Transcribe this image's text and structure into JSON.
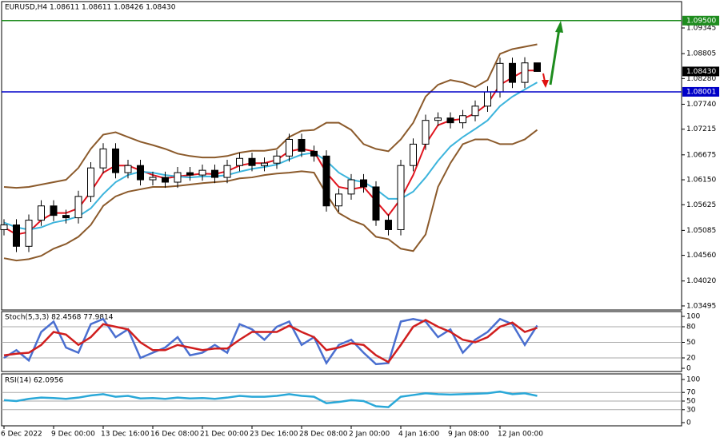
{
  "chart_data": [
    {
      "type": "candlestick",
      "title": "EURUSD,H4 1.08611 1.08611 1.08426 1.08430",
      "categories": [
        "6 Dec 2022",
        null,
        null,
        null,
        "9 Dec 00:00",
        null,
        null,
        null,
        "13 Dec 16:00",
        null,
        null,
        null,
        "16 Dec 08:00",
        null,
        null,
        null,
        "21 Dec 00:00",
        null,
        null,
        null,
        "23 Dec 16:00",
        null,
        null,
        null,
        "28 Dec 08:00",
        null,
        null,
        null,
        "2 Jan 00:00",
        null,
        null,
        null,
        "4 Jan 16:00",
        null,
        null,
        null,
        "9 Jan 08:00",
        null,
        null,
        null,
        "12 Jan 00:00",
        null,
        null,
        null
      ],
      "open": [
        1.051,
        1.052,
        1.0475,
        1.053,
        1.056,
        1.054,
        1.0535,
        1.058,
        1.064,
        1.068,
        1.063,
        1.0645,
        1.0615,
        1.062,
        1.061,
        1.063,
        1.0625,
        1.0635,
        1.062,
        1.0645,
        1.066,
        1.0645,
        1.065,
        1.0665,
        1.07,
        1.0675,
        1.0665,
        1.056,
        1.0585,
        1.0615,
        1.06,
        1.053,
        1.051,
        1.0645,
        1.069,
        1.074,
        1.0745,
        1.0735,
        1.075,
        1.077,
        1.08,
        1.086,
        1.082,
        1.08611
      ],
      "high": [
        1.0532,
        1.0532,
        1.0542,
        1.0572,
        1.0572,
        1.0552,
        1.0592,
        1.0652,
        1.0692,
        1.0692,
        1.0657,
        1.0657,
        1.0632,
        1.0632,
        1.0642,
        1.0642,
        1.0647,
        1.0647,
        1.0657,
        1.0672,
        1.0672,
        1.0662,
        1.0677,
        1.0712,
        1.0712,
        1.0687,
        1.0677,
        1.0597,
        1.0627,
        1.0627,
        1.0612,
        1.0542,
        1.0657,
        1.0702,
        1.0752,
        1.0757,
        1.0757,
        1.0762,
        1.0782,
        1.0812,
        1.0872,
        1.0872,
        1.0873,
        1.08611
      ],
      "low": [
        1.0498,
        1.0463,
        1.0463,
        1.0518,
        1.0528,
        1.0523,
        1.0523,
        1.0568,
        1.0628,
        1.0618,
        1.0618,
        1.0603,
        1.0603,
        1.0598,
        1.0598,
        1.0613,
        1.0613,
        1.0608,
        1.0608,
        1.0633,
        1.0633,
        1.0633,
        1.0638,
        1.0653,
        1.0663,
        1.0653,
        1.0548,
        1.0548,
        1.0573,
        1.0588,
        1.0518,
        1.0498,
        1.0498,
        1.0633,
        1.0678,
        1.0728,
        1.0723,
        1.0723,
        1.0738,
        1.0758,
        1.0788,
        1.0808,
        1.0808,
        1.08426
      ],
      "close": [
        1.052,
        1.0475,
        1.053,
        1.056,
        1.054,
        1.0535,
        1.058,
        1.064,
        1.068,
        1.063,
        1.0645,
        1.0615,
        1.062,
        1.061,
        1.063,
        1.0625,
        1.0635,
        1.062,
        1.0645,
        1.066,
        1.0645,
        1.065,
        1.0665,
        1.07,
        1.0675,
        1.0665,
        1.056,
        1.0585,
        1.0615,
        1.06,
        1.053,
        1.051,
        1.0645,
        1.069,
        1.074,
        1.0745,
        1.0735,
        1.075,
        1.077,
        1.08,
        1.086,
        1.082,
        1.0861,
        1.0843
      ],
      "series": [
        {
          "color": "#8b5a2b",
          "values": [
            1.06,
            1.0598,
            1.06,
            1.0605,
            1.061,
            1.0615,
            1.064,
            1.068,
            1.071,
            1.0715,
            1.0705,
            1.0695,
            1.0688,
            1.068,
            1.067,
            1.0665,
            1.0662,
            1.0662,
            1.0665,
            1.0672,
            1.0676,
            1.0676,
            1.068,
            1.0705,
            1.0718,
            1.072,
            1.0735,
            1.0735,
            1.072,
            1.069,
            1.068,
            1.0675,
            1.07,
            1.0735,
            1.079,
            1.0815,
            1.0825,
            1.082,
            1.081,
            1.0825,
            1.088,
            1.089,
            1.0895,
            1.09
          ]
        },
        {
          "color": "#8b5a2b",
          "values": [
            1.045,
            1.0445,
            1.0448,
            1.0455,
            1.047,
            1.048,
            1.0495,
            1.052,
            1.056,
            1.058,
            1.059,
            1.0595,
            1.06,
            1.06,
            1.0602,
            1.0605,
            1.0608,
            1.061,
            1.0612,
            1.0618,
            1.062,
            1.0625,
            1.0628,
            1.063,
            1.0633,
            1.063,
            1.0585,
            1.0545,
            1.053,
            1.052,
            1.0495,
            1.049,
            1.047,
            1.0465,
            1.05,
            1.06,
            1.065,
            1.069,
            1.07,
            1.07,
            1.069,
            1.069,
            1.07,
            1.072
          ]
        },
        {
          "color": "#e0141e",
          "values": [
            1.0515,
            1.05,
            1.0505,
            1.053,
            1.0545,
            1.0545,
            1.0555,
            1.059,
            1.063,
            1.0645,
            1.0645,
            1.0635,
            1.0625,
            1.0618,
            1.0622,
            1.0625,
            1.0628,
            1.0627,
            1.0633,
            1.0645,
            1.065,
            1.065,
            1.0657,
            1.0675,
            1.068,
            1.0675,
            1.063,
            1.06,
            1.0595,
            1.06,
            1.057,
            1.054,
            1.0575,
            1.0625,
            1.069,
            1.073,
            1.074,
            1.0743,
            1.0755,
            1.0775,
            1.0815,
            1.083,
            1.0845,
            1.0845
          ]
        },
        {
          "color": "#3cb4dc",
          "values": [
            1.0525,
            1.0515,
            1.051,
            1.0515,
            1.0525,
            1.053,
            1.0538,
            1.0555,
            1.0585,
            1.061,
            1.0625,
            1.0632,
            1.063,
            1.0625,
            1.0622,
            1.062,
            1.0622,
            1.0622,
            1.0625,
            1.0632,
            1.0638,
            1.0642,
            1.0647,
            1.0658,
            1.0668,
            1.0672,
            1.0655,
            1.063,
            1.0615,
            1.061,
            1.0595,
            1.0575,
            1.0575,
            1.059,
            1.062,
            1.0655,
            1.0685,
            1.0705,
            1.0722,
            1.074,
            1.077,
            1.079,
            1.0805,
            1.082
          ]
        }
      ],
      "ylim": [
        1.0341,
        1.099
      ],
      "yticks": [
        1.09345,
        1.08805,
        {
          "value": 1.0828,
          "label": "1.08280"
        },
        {
          "value": 1.0774,
          "label": "1.07740"
        },
        1.07215,
        1.06675,
        {
          "value": 1.0615,
          "label": "1.06150"
        },
        1.05625,
        1.05085,
        {
          "value": 1.0456,
          "label": "1.04560"
        },
        {
          "value": 1.0402,
          "label": "1.04020"
        },
        1.03495
      ],
      "levels": [
        {
          "value": 1.095,
          "label": "1.09500",
          "color": "#1e8c1e"
        },
        {
          "value": 1.08001,
          "label": "1.08001",
          "color": "#0000c8"
        }
      ],
      "price_label": {
        "value": 1.0843,
        "label": "1.08430"
      }
    },
    {
      "type": "line",
      "title": "Stoch(5,3,3) 82.4568 77.9814",
      "series": [
        {
          "color": "#4a6fd0",
          "values": [
            20,
            35,
            15,
            70,
            90,
            40,
            30,
            85,
            95,
            60,
            75,
            20,
            30,
            40,
            60,
            25,
            30,
            45,
            30,
            85,
            75,
            55,
            80,
            90,
            45,
            60,
            10,
            45,
            55,
            30,
            8,
            10,
            90,
            95,
            90,
            60,
            75,
            30,
            55,
            70,
            95,
            85,
            45,
            82.4568
          ]
        },
        {
          "color": "#d01e1e",
          "values": [
            25,
            28,
            30,
            45,
            70,
            65,
            45,
            60,
            85,
            80,
            75,
            50,
            35,
            35,
            45,
            40,
            35,
            38,
            38,
            55,
            70,
            70,
            70,
            82,
            70,
            60,
            35,
            40,
            48,
            45,
            25,
            12,
            45,
            80,
            93,
            80,
            70,
            55,
            50,
            60,
            80,
            88,
            70,
            77.9814
          ]
        }
      ],
      "ylim": [
        0,
        100
      ],
      "yticks": [
        0,
        20,
        50,
        80,
        100
      ]
    },
    {
      "type": "line",
      "title": "RSI(14) 62.0956",
      "series": [
        {
          "color": "#2aa8d8",
          "values": [
            52,
            50,
            55,
            58,
            57,
            55,
            58,
            63,
            66,
            60,
            62,
            56,
            57,
            55,
            58,
            56,
            57,
            55,
            58,
            62,
            60,
            60,
            62,
            66,
            62,
            60,
            45,
            48,
            52,
            50,
            38,
            36,
            60,
            64,
            68,
            66,
            65,
            66,
            67,
            68,
            72,
            66,
            68,
            62.0956
          ]
        }
      ],
      "ylim": [
        0,
        100
      ],
      "yticks": [
        0,
        30,
        50,
        70,
        100
      ]
    }
  ]
}
